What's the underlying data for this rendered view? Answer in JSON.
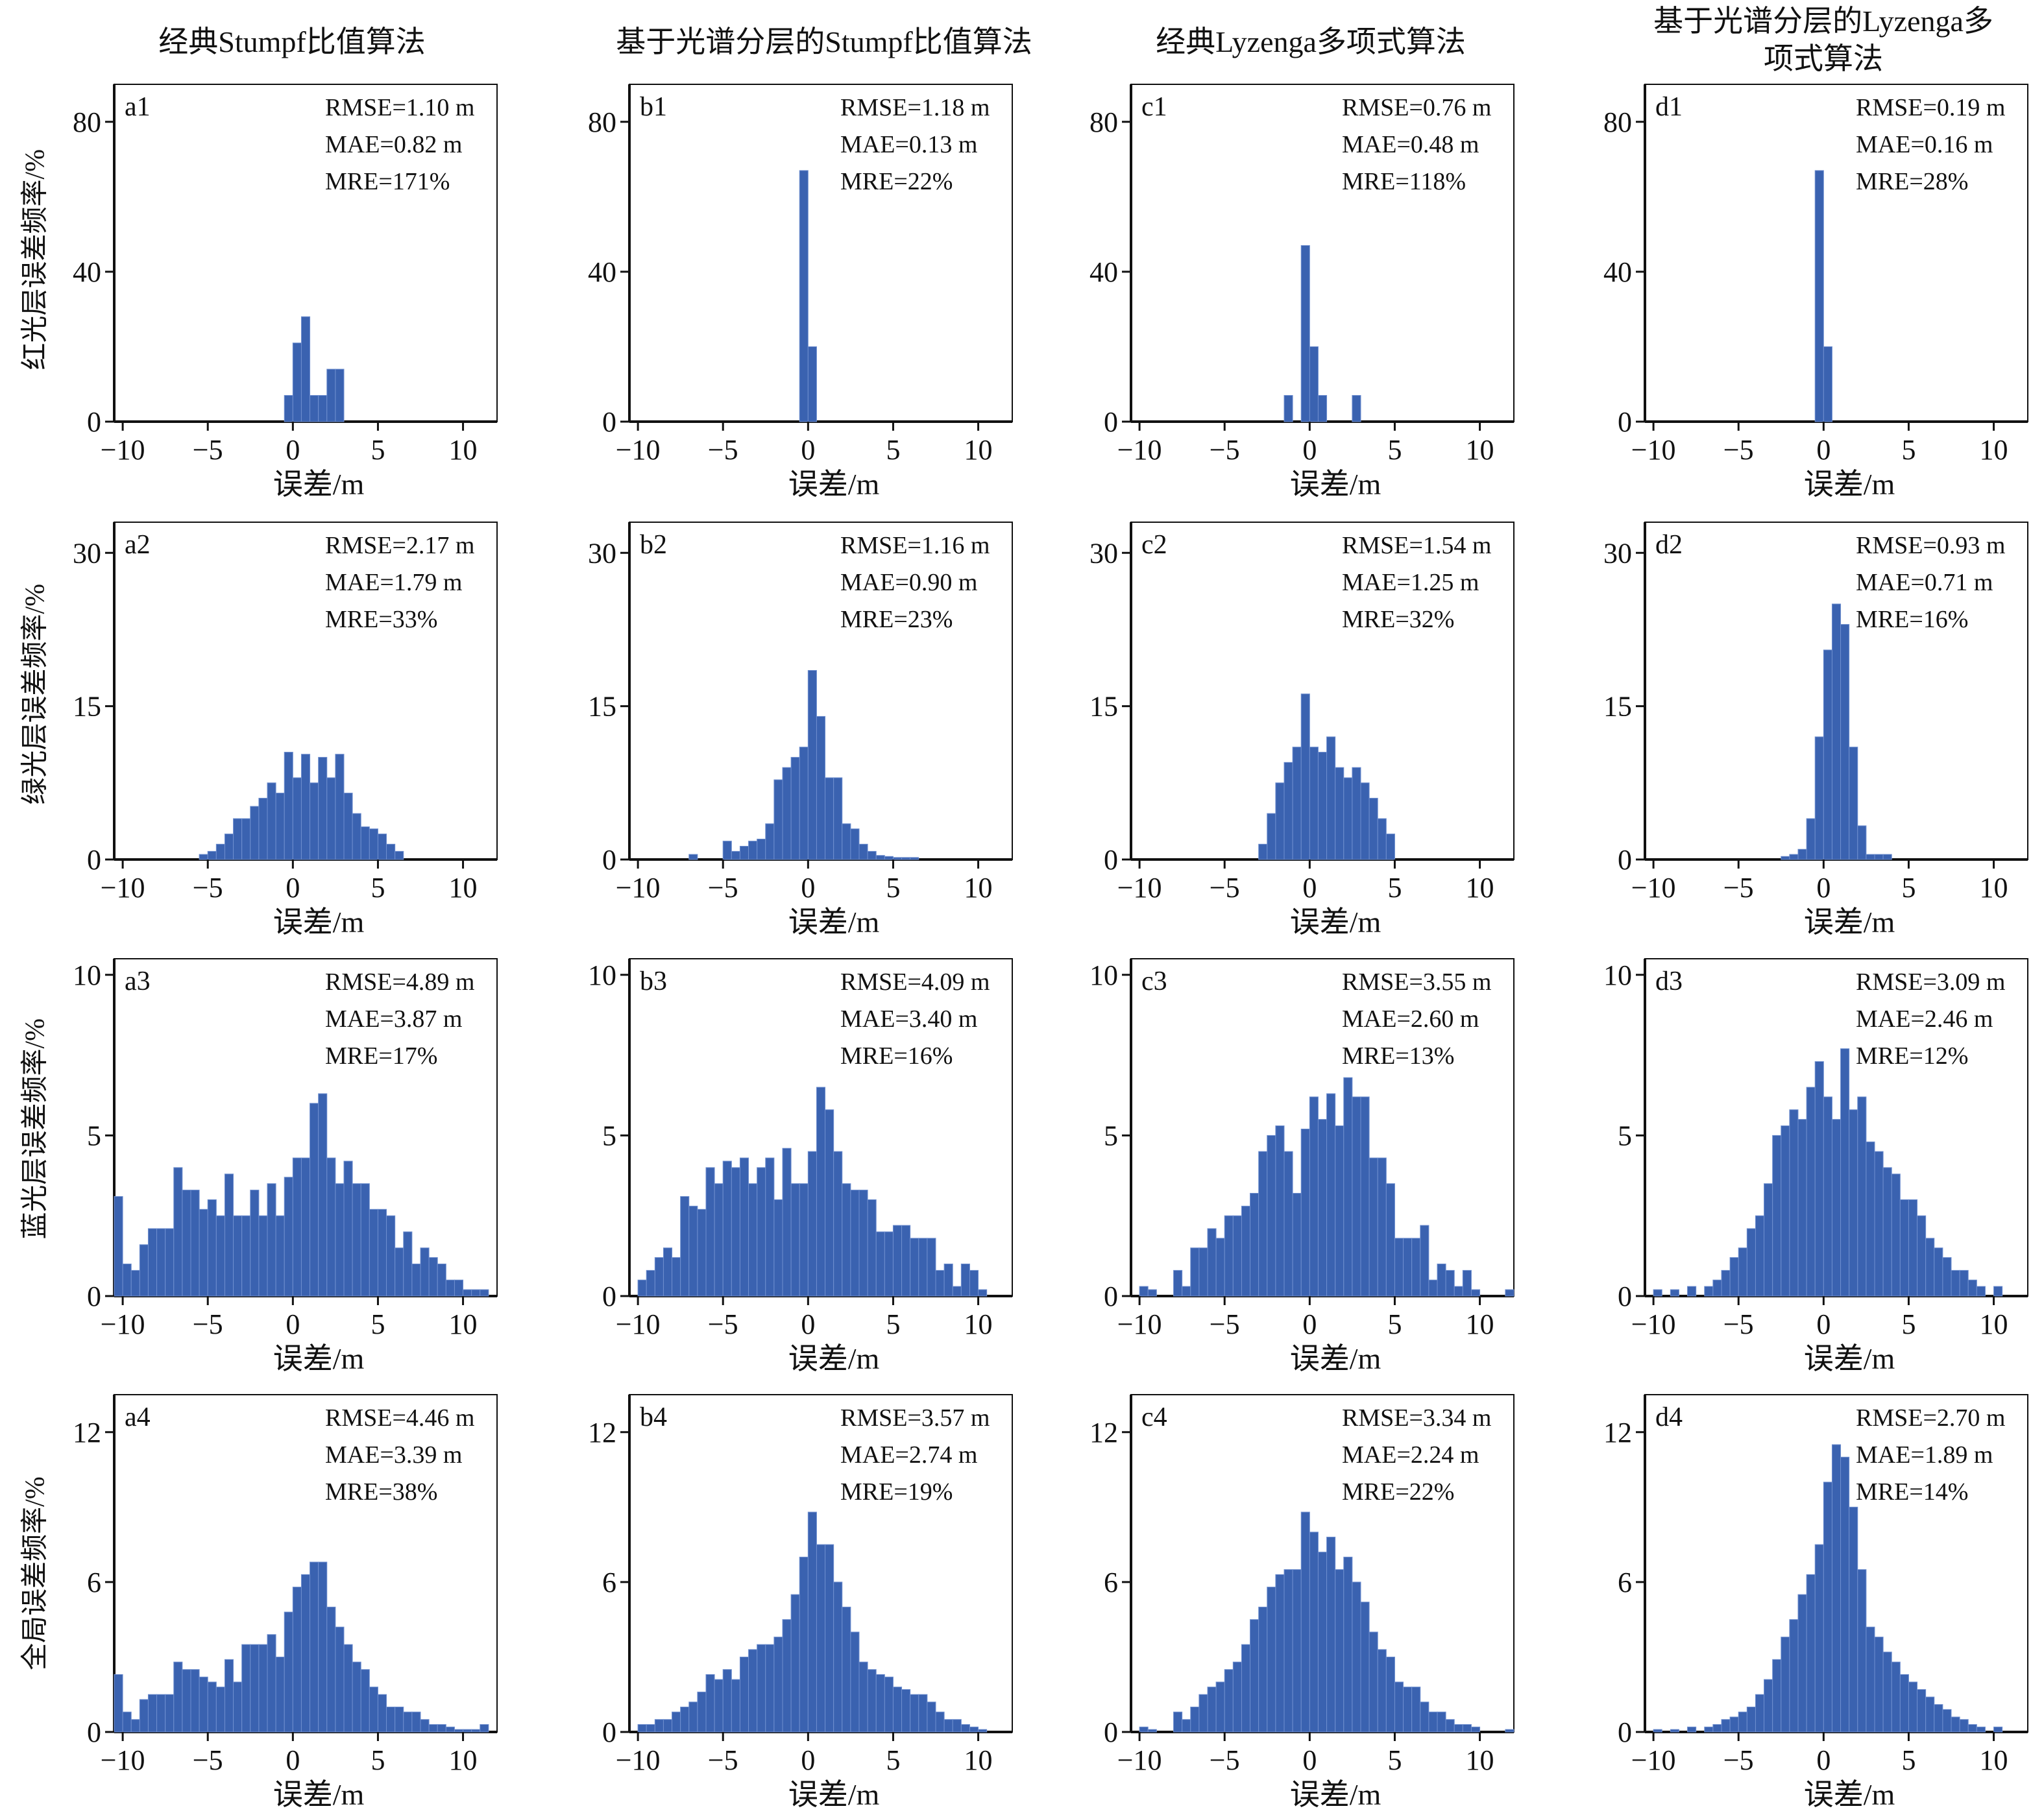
{
  "figure": {
    "col_titles": [
      "经典Stumpf比值算法",
      "基于光谱分层的Stumpf比值算法",
      "经典Lyzenga多项式算法",
      "基于光谱分层的Lyzenga多项式算法"
    ],
    "row_labels": [
      "红光层误差频率/%",
      "绿光层误差频率/%",
      "蓝光层误差频率/%",
      "全局误差频率/%"
    ],
    "colors": {
      "bar": "#3a62b0",
      "bar_edge": "#6f8fcf",
      "axis": "#111111"
    }
  },
  "chart_data": [
    {
      "type": "bar",
      "panel": "a1",
      "xlabel": "误差/m",
      "xlim": [
        -10.5,
        12
      ],
      "ylim": [
        0,
        90
      ],
      "yticks": [
        0,
        40,
        80
      ],
      "xticks": [
        -10,
        -5,
        0,
        5,
        10
      ],
      "metrics": [
        "RMSE=1.10 m",
        "MAE=0.82 m",
        "MRE=171%"
      ],
      "bins": [
        -0.5,
        0,
        0.5,
        1,
        1.5,
        2,
        2.5
      ],
      "values": [
        7,
        21,
        28,
        7,
        7,
        14,
        14
      ]
    },
    {
      "type": "bar",
      "panel": "b1",
      "xlabel": "误差/m",
      "xlim": [
        -10.5,
        12
      ],
      "ylim": [
        0,
        90
      ],
      "yticks": [
        0,
        40,
        80
      ],
      "xticks": [
        -10,
        -5,
        0,
        5,
        10
      ],
      "metrics": [
        "RMSE=1.18 m",
        "MAE=0.13 m",
        "MRE=22%"
      ],
      "bins": [
        -0.5,
        0
      ],
      "values": [
        67,
        20
      ]
    },
    {
      "type": "bar",
      "panel": "c1",
      "xlabel": "误差/m",
      "xlim": [
        -10.5,
        12
      ],
      "ylim": [
        0,
        90
      ],
      "yticks": [
        0,
        40,
        80
      ],
      "xticks": [
        -10,
        -5,
        0,
        5,
        10
      ],
      "metrics": [
        "RMSE=0.76 m",
        "MAE=0.48 m",
        "MRE=118%"
      ],
      "bins": [
        -1.5,
        -0.5,
        0,
        0.5,
        2.5
      ],
      "values": [
        7,
        47,
        20,
        7,
        7
      ]
    },
    {
      "type": "bar",
      "panel": "d1",
      "xlabel": "误差/m",
      "xlim": [
        -10.5,
        12
      ],
      "ylim": [
        0,
        90
      ],
      "yticks": [
        0,
        40,
        80
      ],
      "xticks": [
        -10,
        -5,
        0,
        5,
        10
      ],
      "metrics": [
        "RMSE=0.19 m",
        "MAE=0.16 m",
        "MRE=28%"
      ],
      "bins": [
        -0.5,
        0
      ],
      "values": [
        67,
        20
      ]
    },
    {
      "type": "bar",
      "panel": "a2",
      "xlabel": "误差/m",
      "xlim": [
        -10.5,
        12
      ],
      "ylim": [
        0,
        33
      ],
      "yticks": [
        0,
        15,
        30
      ],
      "xticks": [
        -10,
        -5,
        0,
        5,
        10
      ],
      "metrics": [
        "RMSE=2.17 m",
        "MAE=1.79 m",
        "MRE=33%"
      ],
      "bins": [
        -5.5,
        -5,
        -4.5,
        -4,
        -3.5,
        -3,
        -2.5,
        -2,
        -1.5,
        -1,
        -0.5,
        0,
        0.5,
        1,
        1.5,
        2,
        2.5,
        3,
        3.5,
        4,
        4.5,
        5,
        5.5,
        6
      ],
      "values": [
        0.5,
        0.8,
        1.5,
        2.5,
        4,
        4,
        5.2,
        6,
        7.5,
        6.5,
        10.5,
        8,
        10.3,
        7.5,
        10,
        8,
        10.3,
        6.5,
        4.5,
        3.2,
        3,
        2.5,
        1.5,
        0.8
      ]
    },
    {
      "type": "bar",
      "panel": "b2",
      "xlabel": "误差/m",
      "xlim": [
        -10.5,
        12
      ],
      "ylim": [
        0,
        33
      ],
      "yticks": [
        0,
        15,
        30
      ],
      "xticks": [
        -10,
        -5,
        0,
        5,
        10
      ],
      "metrics": [
        "RMSE=1.16 m",
        "MAE=0.90 m",
        "MRE=23%"
      ],
      "bins": [
        -7,
        -5,
        -4.5,
        -4,
        -3.5,
        -3,
        -2.5,
        -2,
        -1.5,
        -1,
        -0.5,
        0,
        0.5,
        1,
        1.5,
        2,
        2.5,
        3,
        3.5,
        4,
        4.5,
        5,
        5.5,
        6
      ],
      "values": [
        0.5,
        1.8,
        0.8,
        1.3,
        1.8,
        2,
        3.5,
        7.8,
        9,
        10,
        11,
        18.5,
        14,
        8,
        8,
        3.5,
        3,
        1.5,
        0.8,
        0.4,
        0.3,
        0.2,
        0.2,
        0.2
      ]
    },
    {
      "type": "bar",
      "panel": "c2",
      "xlabel": "误差/m",
      "xlim": [
        -10.5,
        12
      ],
      "ylim": [
        0,
        33
      ],
      "yticks": [
        0,
        15,
        30
      ],
      "xticks": [
        -10,
        -5,
        0,
        5,
        10
      ],
      "metrics": [
        "RMSE=1.54 m",
        "MAE=1.25 m",
        "MRE=32%"
      ],
      "bins": [
        -3,
        -2.5,
        -2,
        -1.5,
        -1,
        -0.5,
        0,
        0.5,
        1,
        1.5,
        2,
        2.5,
        3,
        3.5,
        4,
        4.5
      ],
      "values": [
        1.5,
        4.5,
        7.5,
        9.5,
        11,
        16.2,
        11,
        10.5,
        12,
        9,
        8,
        9,
        7.5,
        6,
        4,
        2.5
      ]
    },
    {
      "type": "bar",
      "panel": "d2",
      "xlabel": "误差/m",
      "xlim": [
        -10.5,
        12
      ],
      "ylim": [
        0,
        33
      ],
      "yticks": [
        0,
        15,
        30
      ],
      "xticks": [
        -10,
        -5,
        0,
        5,
        10
      ],
      "metrics": [
        "RMSE=0.93 m",
        "MAE=0.71 m",
        "MRE=16%"
      ],
      "bins": [
        -2.5,
        -2,
        -1.5,
        -1,
        -0.5,
        0,
        0.5,
        1,
        1.5,
        2,
        2.5,
        3,
        3.5
      ],
      "values": [
        0.3,
        0.5,
        1,
        4,
        12,
        20.5,
        25,
        23,
        11,
        3.3,
        0.5,
        0.5,
        0.5
      ]
    },
    {
      "type": "bar",
      "panel": "a3",
      "xlabel": "误差/m",
      "xlim": [
        -10.5,
        12
      ],
      "ylim": [
        0,
        10.5
      ],
      "yticks": [
        0,
        5,
        10
      ],
      "xticks": [
        -10,
        -5,
        0,
        5,
        10
      ],
      "metrics": [
        "RMSE=4.89 m",
        "MAE=3.87 m",
        "MRE=17%"
      ],
      "bins": [
        -10.5,
        -10,
        -9.5,
        -9,
        -8.5,
        -8,
        -7.5,
        -7,
        -6.5,
        -6,
        -5.5,
        -5,
        -4.5,
        -4,
        -3.5,
        -3,
        -2.5,
        -2,
        -1.5,
        -1,
        -0.5,
        0,
        0.5,
        1,
        1.5,
        2,
        2.5,
        3,
        3.5,
        4,
        4.5,
        5,
        5.5,
        6,
        6.5,
        7,
        7.5,
        8,
        8.5,
        9,
        9.5,
        10,
        10.5,
        11
      ],
      "values": [
        3.1,
        1,
        0.8,
        1.6,
        2.1,
        2.1,
        2.1,
        4,
        3.3,
        3.3,
        2.7,
        3,
        2.5,
        3.8,
        2.5,
        2.5,
        3.3,
        2.5,
        3.5,
        2.5,
        3.7,
        4.3,
        4.3,
        6,
        6.3,
        4.3,
        3.5,
        4.2,
        3.5,
        3.5,
        2.7,
        2.7,
        2.5,
        1.5,
        2,
        1,
        1.5,
        1.2,
        1,
        0.5,
        0.5,
        0.2,
        0.2,
        0.2
      ]
    },
    {
      "type": "bar",
      "panel": "b3",
      "xlabel": "误差/m",
      "xlim": [
        -10.5,
        12
      ],
      "ylim": [
        0,
        10.5
      ],
      "yticks": [
        0,
        5,
        10
      ],
      "xticks": [
        -10,
        -5,
        0,
        5,
        10
      ],
      "metrics": [
        "RMSE=4.09 m",
        "MAE=3.40 m",
        "MRE=16%"
      ],
      "bins": [
        -10,
        -9.5,
        -9,
        -8.5,
        -8,
        -7.5,
        -7,
        -6.5,
        -6,
        -5.5,
        -5,
        -4.5,
        -4,
        -3.5,
        -3,
        -2.5,
        -2,
        -1.5,
        -1,
        -0.5,
        0,
        0.5,
        1,
        1.5,
        2,
        2.5,
        3,
        3.5,
        4,
        4.5,
        5,
        5.5,
        6,
        6.5,
        7,
        7.5,
        8,
        8.5,
        9,
        9.5,
        10
      ],
      "values": [
        0.5,
        0.8,
        1.2,
        1.5,
        1.2,
        3.1,
        2.8,
        2.7,
        4,
        3.5,
        4.2,
        4,
        4.3,
        3.5,
        4,
        4.3,
        3,
        4.6,
        3.5,
        3.5,
        4.5,
        6.5,
        5.8,
        4.5,
        3.5,
        3.3,
        3.3,
        3,
        2,
        2,
        2.2,
        2.2,
        1.8,
        1.8,
        1.8,
        0.8,
        1,
        0.3,
        1,
        0.8,
        0.2
      ]
    },
    {
      "type": "bar",
      "panel": "c3",
      "xlabel": "误差/m",
      "xlim": [
        -10.5,
        12
      ],
      "ylim": [
        0,
        10.5
      ],
      "yticks": [
        0,
        5,
        10
      ],
      "xticks": [
        -10,
        -5,
        0,
        5,
        10
      ],
      "metrics": [
        "RMSE=3.55 m",
        "MAE=2.60 m",
        "MRE=13%"
      ],
      "bins": [
        -10,
        -9.5,
        -8,
        -7.5,
        -7,
        -6.5,
        -6,
        -5.5,
        -5,
        -4.5,
        -4,
        -3.5,
        -3,
        -2.5,
        -2,
        -1.5,
        -1,
        -0.5,
        0,
        0.5,
        1,
        1.5,
        2,
        2.5,
        3,
        3.5,
        4,
        4.5,
        5,
        5.5,
        6,
        6.5,
        7,
        7.5,
        8,
        8.5,
        9,
        9.5,
        11.5
      ],
      "values": [
        0.3,
        0.2,
        0.8,
        0.3,
        1.5,
        1.5,
        2.1,
        1.8,
        2.5,
        2.5,
        2.8,
        3.2,
        4.5,
        5,
        5.3,
        4.5,
        3.2,
        5.2,
        6.2,
        5.5,
        6.3,
        5.3,
        6.8,
        6.2,
        6.2,
        4.3,
        4.3,
        3.5,
        1.8,
        1.8,
        1.8,
        2.2,
        0.5,
        1,
        0.8,
        0.3,
        0.8,
        0.2,
        0.2
      ]
    },
    {
      "type": "bar",
      "panel": "d3",
      "xlabel": "误差/m",
      "xlim": [
        -10.5,
        12
      ],
      "ylim": [
        0,
        10.5
      ],
      "yticks": [
        0,
        5,
        10
      ],
      "xticks": [
        -10,
        -5,
        0,
        5,
        10
      ],
      "metrics": [
        "RMSE=3.09 m",
        "MAE=2.46 m",
        "MRE=12%"
      ],
      "bins": [
        -10,
        -9,
        -8,
        -7,
        -6.5,
        -6,
        -5.5,
        -5,
        -4.5,
        -4,
        -3.5,
        -3,
        -2.5,
        -2,
        -1.5,
        -1,
        -0.5,
        0,
        0.5,
        1,
        1.5,
        2,
        2.5,
        3,
        3.5,
        4,
        4.5,
        5,
        5.5,
        6,
        6.5,
        7,
        7.5,
        8,
        8.5,
        9,
        10
      ],
      "values": [
        0.2,
        0.2,
        0.3,
        0.3,
        0.5,
        0.8,
        1.2,
        1.5,
        2.1,
        2.5,
        3.5,
        5,
        5.3,
        5.8,
        5.5,
        6.5,
        7.3,
        6.2,
        5.5,
        7.7,
        5.8,
        6.2,
        4.8,
        4.5,
        4,
        3.8,
        3,
        3,
        2.5,
        1.8,
        1.5,
        1.2,
        0.8,
        0.8,
        0.5,
        0.3,
        0.3
      ]
    },
    {
      "type": "bar",
      "panel": "a4",
      "xlabel": "误差/m",
      "xlim": [
        -10.5,
        12
      ],
      "ylim": [
        0,
        13.5
      ],
      "yticks": [
        0,
        6,
        12
      ],
      "xticks": [
        -10,
        -5,
        0,
        5,
        10
      ],
      "metrics": [
        "RMSE=4.46 m",
        "MAE=3.39 m",
        "MRE=38%"
      ],
      "bins": [
        -10.5,
        -10,
        -9.5,
        -9,
        -8.5,
        -8,
        -7.5,
        -7,
        -6.5,
        -6,
        -5.5,
        -5,
        -4.5,
        -4,
        -3.5,
        -3,
        -2.5,
        -2,
        -1.5,
        -1,
        -0.5,
        0,
        0.5,
        1,
        1.5,
        2,
        2.5,
        3,
        3.5,
        4,
        4.5,
        5,
        5.5,
        6,
        6.5,
        7,
        7.5,
        8,
        8.5,
        9,
        9.5,
        10,
        10.5,
        11
      ],
      "values": [
        2.3,
        0.8,
        0.5,
        1.3,
        1.5,
        1.5,
        1.5,
        2.8,
        2.5,
        2.5,
        2.2,
        2,
        1.8,
        2.9,
        2,
        3.5,
        3.5,
        3.5,
        3.9,
        3,
        4.8,
        5.8,
        6.3,
        6.8,
        6.8,
        5,
        4.2,
        3.5,
        2.8,
        2.5,
        1.8,
        1.5,
        1,
        1,
        0.8,
        0.8,
        0.5,
        0.3,
        0.3,
        0.2,
        0.1,
        0.1,
        0.1,
        0.3
      ]
    },
    {
      "type": "bar",
      "panel": "b4",
      "xlabel": "误差/m",
      "xlim": [
        -10.5,
        12
      ],
      "ylim": [
        0,
        13.5
      ],
      "yticks": [
        0,
        6,
        12
      ],
      "xticks": [
        -10,
        -5,
        0,
        5,
        10
      ],
      "metrics": [
        "RMSE=3.57 m",
        "MAE=2.74 m",
        "MRE=19%"
      ],
      "bins": [
        -10,
        -9.5,
        -9,
        -8.5,
        -8,
        -7.5,
        -7,
        -6.5,
        -6,
        -5.5,
        -5,
        -4.5,
        -4,
        -3.5,
        -3,
        -2.5,
        -2,
        -1.5,
        -1,
        -0.5,
        0,
        0.5,
        1,
        1.5,
        2,
        2.5,
        3,
        3.5,
        4,
        4.5,
        5,
        5.5,
        6,
        6.5,
        7,
        7.5,
        8,
        8.5,
        9,
        9.5,
        10
      ],
      "values": [
        0.3,
        0.3,
        0.5,
        0.5,
        0.8,
        1,
        1.2,
        1.6,
        2.3,
        2.1,
        2.5,
        2.1,
        3,
        3.3,
        3.5,
        3.5,
        3.8,
        4.5,
        5.5,
        7,
        8.8,
        7.5,
        7.5,
        6,
        5,
        4,
        2.8,
        2.5,
        2.3,
        2.2,
        1.8,
        1.7,
        1.5,
        1.5,
        1.2,
        0.8,
        0.5,
        0.5,
        0.3,
        0.2,
        0.1
      ]
    },
    {
      "type": "bar",
      "panel": "c4",
      "xlabel": "误差/m",
      "xlim": [
        -10.5,
        12
      ],
      "ylim": [
        0,
        13.5
      ],
      "yticks": [
        0,
        6,
        12
      ],
      "xticks": [
        -10,
        -5,
        0,
        5,
        10
      ],
      "metrics": [
        "RMSE=3.34 m",
        "MAE=2.24 m",
        "MRE=22%"
      ],
      "bins": [
        -10,
        -9.5,
        -8,
        -7.5,
        -7,
        -6.5,
        -6,
        -5.5,
        -5,
        -4.5,
        -4,
        -3.5,
        -3,
        -2.5,
        -2,
        -1.5,
        -1,
        -0.5,
        0,
        0.5,
        1,
        1.5,
        2,
        2.5,
        3,
        3.5,
        4,
        4.5,
        5,
        5.5,
        6,
        6.5,
        7,
        7.5,
        8,
        8.5,
        9,
        9.5,
        11.5
      ],
      "values": [
        0.2,
        0.1,
        0.8,
        0.5,
        1,
        1.5,
        1.8,
        2,
        2.5,
        2.8,
        3.5,
        4.5,
        5,
        5.8,
        6.3,
        6.5,
        6.5,
        8.8,
        8,
        7.2,
        7.8,
        6.5,
        7,
        6,
        5.2,
        4,
        3.3,
        3,
        2,
        1.8,
        1.8,
        1.2,
        0.8,
        0.8,
        0.5,
        0.3,
        0.3,
        0.2,
        0.1
      ]
    },
    {
      "type": "bar",
      "panel": "d4",
      "xlabel": "误差/m",
      "xlim": [
        -10.5,
        12
      ],
      "ylim": [
        0,
        13.5
      ],
      "yticks": [
        0,
        6,
        12
      ],
      "xticks": [
        -10,
        -5,
        0,
        5,
        10
      ],
      "metrics": [
        "RMSE=2.70 m",
        "MAE=1.89 m",
        "MRE=14%"
      ],
      "bins": [
        -10,
        -9,
        -8,
        -7,
        -6.5,
        -6,
        -5.5,
        -5,
        -4.5,
        -4,
        -3.5,
        -3,
        -2.5,
        -2,
        -1.5,
        -1,
        -0.5,
        0,
        0.5,
        1,
        1.5,
        2,
        2.5,
        3,
        3.5,
        4,
        4.5,
        5,
        5.5,
        6,
        6.5,
        7,
        7.5,
        8,
        8.5,
        9,
        10
      ],
      "values": [
        0.1,
        0.1,
        0.2,
        0.2,
        0.3,
        0.5,
        0.6,
        0.8,
        1,
        1.5,
        2.1,
        2.9,
        3.8,
        4.5,
        5.5,
        6.3,
        7.5,
        10,
        11.5,
        11,
        9,
        6.5,
        4.2,
        3.8,
        3.2,
        2.8,
        2.3,
        2,
        1.7,
        1.4,
        1.1,
        0.9,
        0.6,
        0.5,
        0.3,
        0.2,
        0.2
      ]
    }
  ]
}
